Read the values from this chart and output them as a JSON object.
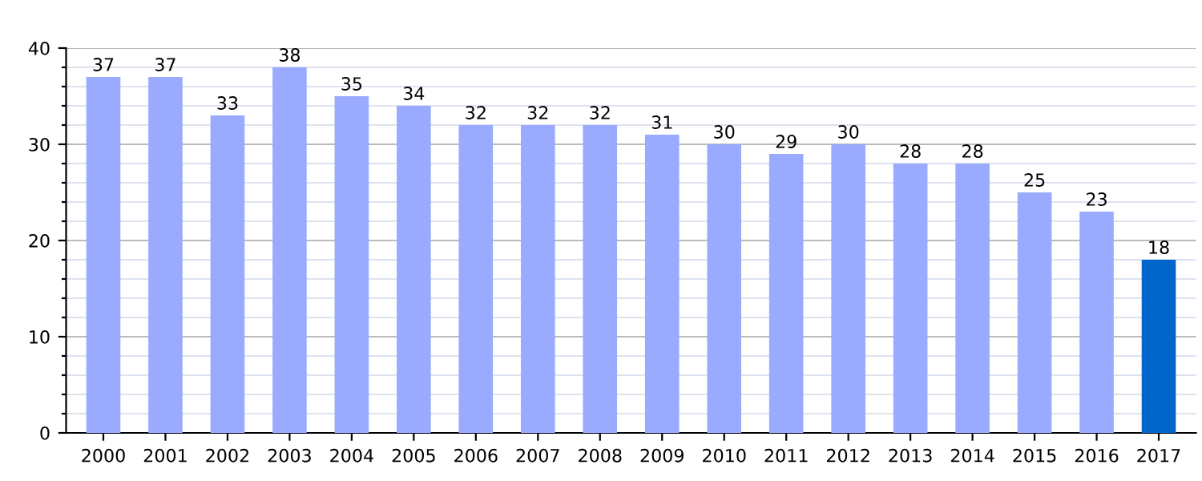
{
  "chart_data": {
    "type": "bar",
    "categories": [
      "2000",
      "2001",
      "2002",
      "2003",
      "2004",
      "2005",
      "2006",
      "2007",
      "2008",
      "2009",
      "2010",
      "2011",
      "2012",
      "2013",
      "2014",
      "2015",
      "2016",
      "2017"
    ],
    "values": [
      37,
      37,
      33,
      38,
      35,
      34,
      32,
      32,
      32,
      31,
      30,
      29,
      30,
      28,
      28,
      25,
      23,
      18
    ],
    "colors": [
      "#99aaff",
      "#99aaff",
      "#99aaff",
      "#99aaff",
      "#99aaff",
      "#99aaff",
      "#99aaff",
      "#99aaff",
      "#99aaff",
      "#99aaff",
      "#99aaff",
      "#99aaff",
      "#99aaff",
      "#99aaff",
      "#99aaff",
      "#99aaff",
      "#99aaff",
      "#0066cc"
    ],
    "ylim": [
      0,
      40
    ],
    "yticks": [
      0,
      {
        "value": 2,
        "label": null
      },
      {
        "value": 4,
        "label": null
      },
      {
        "value": 6,
        "label": null
      },
      {
        "value": 8,
        "label": null
      },
      10,
      {
        "value": 12,
        "label": null
      },
      {
        "value": 14,
        "label": null
      },
      {
        "value": 16,
        "label": null
      },
      {
        "value": 18,
        "label": null
      },
      20,
      {
        "value": 22,
        "label": null
      },
      {
        "value": 24,
        "label": null
      },
      {
        "value": 26,
        "label": null
      },
      {
        "value": 28,
        "label": null
      },
      30,
      {
        "value": 32,
        "label": null
      },
      {
        "value": 34,
        "label": null
      },
      {
        "value": 36,
        "label": null
      },
      {
        "value": 38,
        "label": null
      },
      40
    ],
    "grid": "y",
    "data_labels": true
  }
}
